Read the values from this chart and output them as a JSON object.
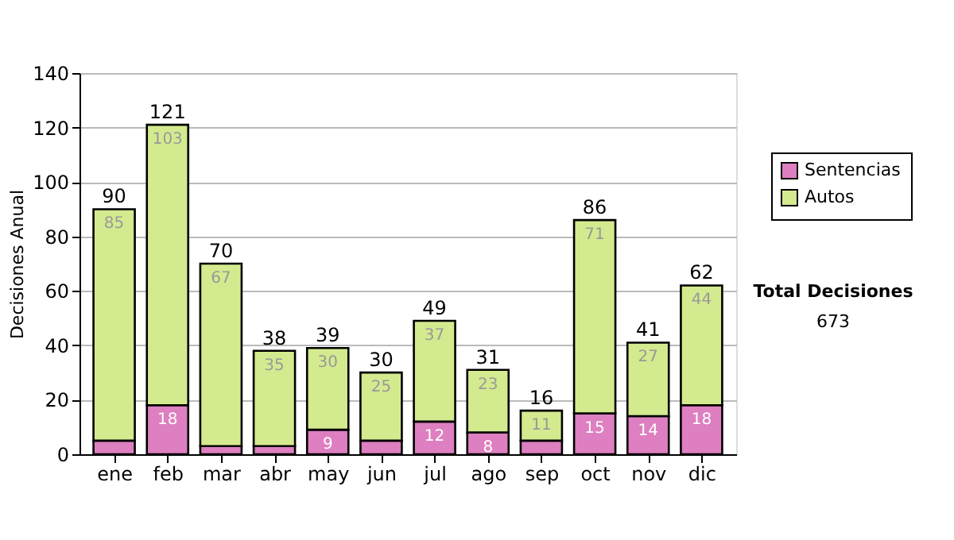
{
  "chart_data": {
    "type": "bar",
    "stacked": true,
    "ylabel": "Decisiones Anual",
    "categories": [
      "ene",
      "feb",
      "mar",
      "abr",
      "may",
      "jun",
      "jul",
      "ago",
      "sep",
      "oct",
      "nov",
      "dic"
    ],
    "series": [
      {
        "name": "Sentencias",
        "color": "#dd7fc0",
        "values": [
          5,
          18,
          3,
          3,
          9,
          5,
          12,
          8,
          5,
          15,
          14,
          18
        ],
        "value_labels": [
          null,
          "18",
          null,
          null,
          "9",
          null,
          "12",
          "8",
          null,
          "15",
          "14",
          "18"
        ]
      },
      {
        "name": "Autos",
        "color": "#d4ea8f",
        "values": [
          85,
          103,
          67,
          35,
          30,
          25,
          37,
          23,
          11,
          71,
          27,
          44
        ],
        "value_labels": [
          "85",
          "103",
          "67",
          "35",
          "30",
          "25",
          "37",
          "23",
          "11",
          "71",
          "27",
          "44"
        ]
      }
    ],
    "totals": [
      "90",
      "121",
      "70",
      "38",
      "39",
      "30",
      "49",
      "31",
      "16",
      "86",
      "41",
      "62"
    ],
    "ylim": [
      0,
      140
    ],
    "yticks": [
      0,
      20,
      40,
      60,
      80,
      100,
      120,
      140
    ],
    "grid": "y",
    "legend": "right",
    "annotations": [
      "Total Decisiones",
      "673"
    ]
  }
}
